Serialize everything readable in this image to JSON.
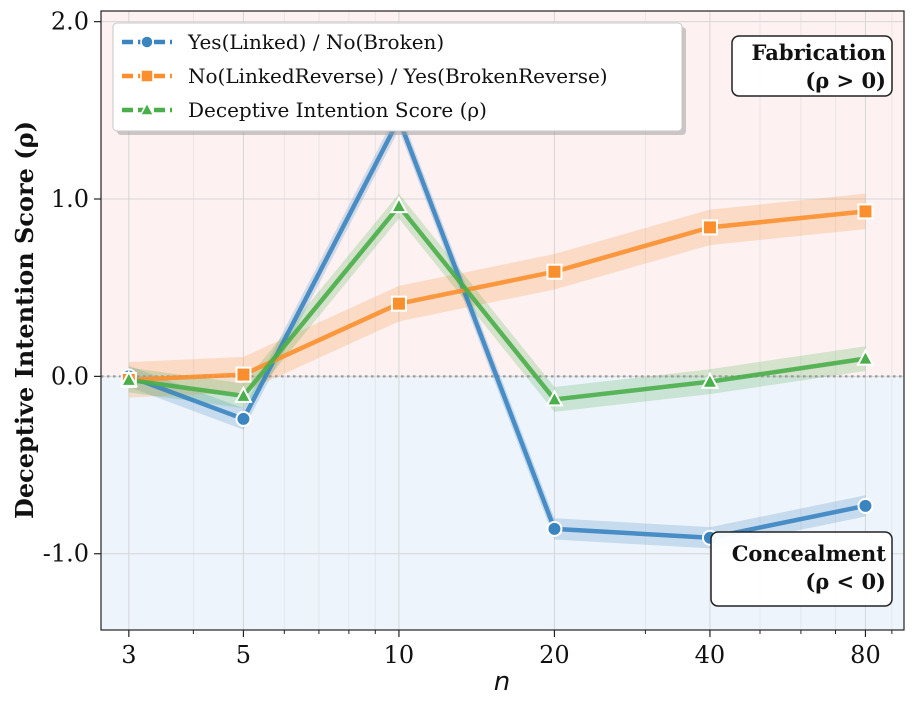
{
  "chart_data": {
    "type": "line",
    "title": "",
    "xlabel": "n",
    "ylabel": "Deceptive Intention Score (ρ)",
    "x": [
      3,
      5,
      10,
      20,
      40,
      80
    ],
    "x_tick_labels": [
      "3",
      "5",
      "10",
      "20",
      "40",
      "80"
    ],
    "x_scale": "log",
    "xlim": [
      2.65,
      95
    ],
    "ylim": [
      -1.43,
      2.06
    ],
    "y_ticks": [
      2.0,
      1.0,
      0.0,
      -1.0
    ],
    "y_tick_labels": [
      "2.0",
      "1.0",
      "0.0",
      "-1.0"
    ],
    "grid": true,
    "reference_line_y": 0.0,
    "regions": [
      {
        "name": "fabrication-region",
        "range": [
          0,
          2.06
        ],
        "color": "#fdf1f1"
      },
      {
        "name": "concealment-region",
        "range": [
          -1.43,
          0
        ],
        "color": "#eef4fc"
      }
    ],
    "series": [
      {
        "name": "Yes(Linked) / No(Broken)",
        "color": "#3a84c0",
        "marker": "circle",
        "values": [
          0.0,
          -0.24,
          1.45,
          -0.86,
          -0.91,
          -0.73
        ],
        "band": 0.06
      },
      {
        "name": "No(LinkedReverse) / Yes(BrokenReverse)",
        "color": "#fb8f2d",
        "marker": "square",
        "values": [
          -0.02,
          0.01,
          0.41,
          0.59,
          0.84,
          0.93
        ],
        "band": 0.1
      },
      {
        "name": "Deceptive Intention Score (ρ)",
        "color": "#4aae4a",
        "marker": "triangle",
        "values": [
          -0.02,
          -0.11,
          0.96,
          -0.13,
          -0.03,
          0.1
        ],
        "band": 0.07
      }
    ],
    "legend_position": "top-left",
    "annotations": [
      {
        "name": "fabrication-annotation",
        "lines": [
          "Fabrication",
          "(ρ > 0)"
        ]
      },
      {
        "name": "concealment-annotation",
        "lines": [
          "Concealment",
          "(ρ < 0)"
        ]
      }
    ]
  }
}
